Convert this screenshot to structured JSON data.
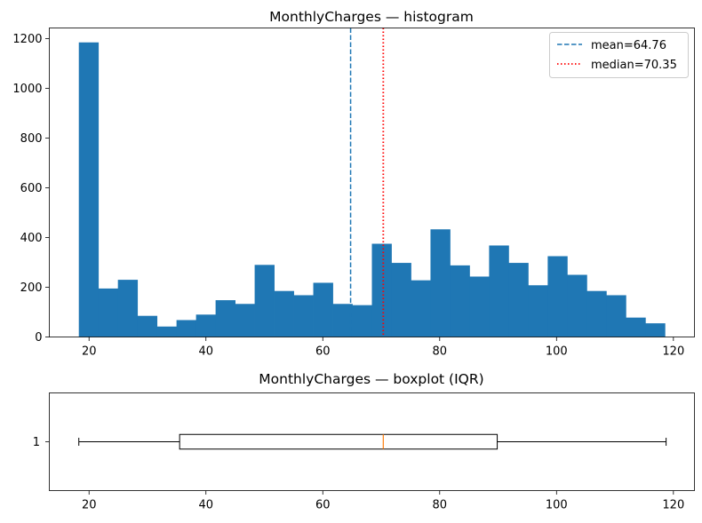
{
  "chart_data": [
    {
      "type": "bar",
      "title": "MonthlyCharges — histogram",
      "xlabel": "",
      "ylabel": "",
      "xlim": [
        13.2,
        123.6
      ],
      "ylim": [
        0,
        1243
      ],
      "xticks": [
        20,
        40,
        60,
        80,
        100,
        120
      ],
      "yticks": [
        0,
        200,
        400,
        600,
        800,
        1000,
        1200
      ],
      "bin_start": 18.25,
      "bin_width": 3.3433,
      "counts": [
        1185,
        195,
        230,
        85,
        42,
        68,
        90,
        148,
        133,
        290,
        185,
        168,
        218,
        133,
        128,
        375,
        298,
        228,
        433,
        288,
        243,
        368,
        298,
        208,
        325,
        250,
        185,
        168,
        78,
        55
      ],
      "color": "#1f77b4",
      "grid": false,
      "legend_position": "top-right",
      "reference_lines": [
        {
          "label": "mean=64.76",
          "value": 64.76,
          "color": "#1f77b4",
          "style": "dashed"
        },
        {
          "label": "median=70.35",
          "value": 70.35,
          "color": "#ff0000",
          "style": "dotted"
        }
      ]
    },
    {
      "type": "boxplot",
      "title": "MonthlyCharges — boxplot (IQR)",
      "orientation": "horizontal",
      "xlim": [
        13.2,
        123.6
      ],
      "xticks": [
        20,
        40,
        60,
        80,
        100,
        120
      ],
      "category_label": "1",
      "whisker_low": 18.25,
      "q1": 35.5,
      "median": 70.35,
      "q3": 89.85,
      "whisker_high": 118.75,
      "median_color": "#ff7f0e"
    }
  ]
}
